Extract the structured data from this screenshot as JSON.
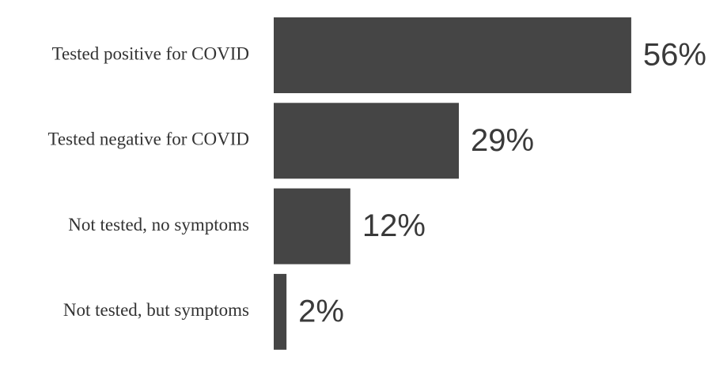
{
  "chart_data": {
    "type": "hbar",
    "categories": [
      "Tested positive for COVID",
      "Tested negative for COVID",
      "Not tested, no symptoms",
      "Not tested, but symptoms"
    ],
    "values": [
      56,
      29,
      12,
      2
    ],
    "value_labels": [
      "56%",
      "29%",
      "12%",
      "2%"
    ],
    "color": "#454545"
  }
}
